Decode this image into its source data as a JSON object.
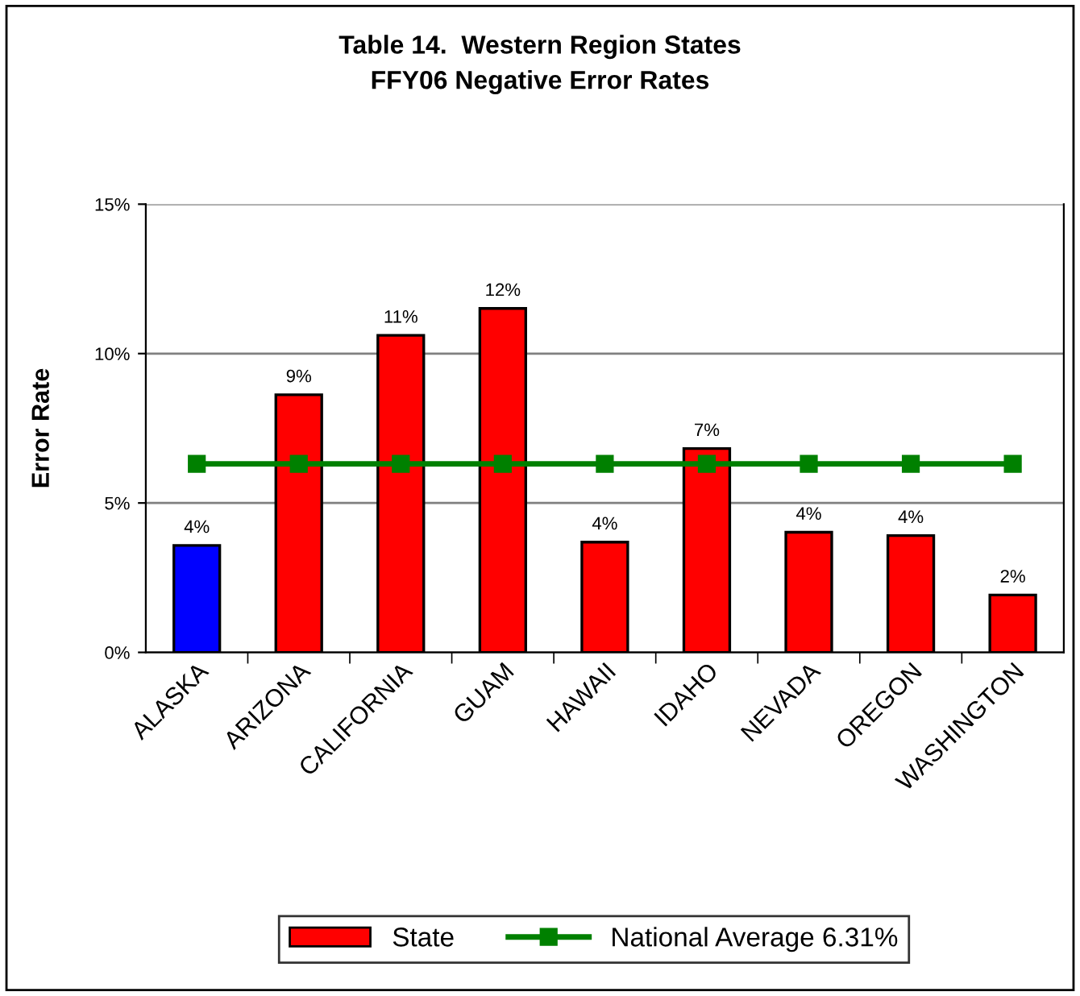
{
  "chart_data": {
    "type": "bar",
    "title": "Table 14.  Western Region States\nFFY06 Negative Error Rates",
    "ylabel": "Error Rate",
    "categories": [
      "ALASKA",
      "ARIZONA",
      "CALIFORNIA",
      "GUAM",
      "HAWAII",
      "IDAHO",
      "NEVADA",
      "OREGON",
      "WASHINGTON"
    ],
    "series": [
      {
        "name": "State",
        "color": "#ff0000",
        "colors": [
          "#0000ff",
          "#ff0000",
          "#ff0000",
          "#ff0000",
          "#ff0000",
          "#ff0000",
          "#ff0000",
          "#ff0000",
          "#ff0000"
        ],
        "values": [
          3.58,
          8.62,
          10.61,
          11.51,
          3.69,
          6.82,
          4.02,
          3.91,
          1.92
        ],
        "value_labels": [
          "4%",
          "9%",
          "11%",
          "12%",
          "4%",
          "7%",
          "4%",
          "4%",
          "2%"
        ]
      },
      {
        "name": "National Average 6.31%",
        "type": "line",
        "color": "#008000",
        "marker": "square",
        "values": [
          6.31,
          6.31,
          6.31,
          6.31,
          6.31,
          6.31,
          6.31,
          6.31,
          6.31
        ]
      }
    ],
    "ylim": [
      0,
      15
    ],
    "yticks": [
      {
        "value": 0,
        "label": "0%"
      },
      {
        "value": 5,
        "label": "5%"
      },
      {
        "value": 10,
        "label": "10%"
      },
      {
        "value": 15,
        "label": "15%"
      }
    ],
    "grid": "y",
    "legend": "bottom"
  }
}
